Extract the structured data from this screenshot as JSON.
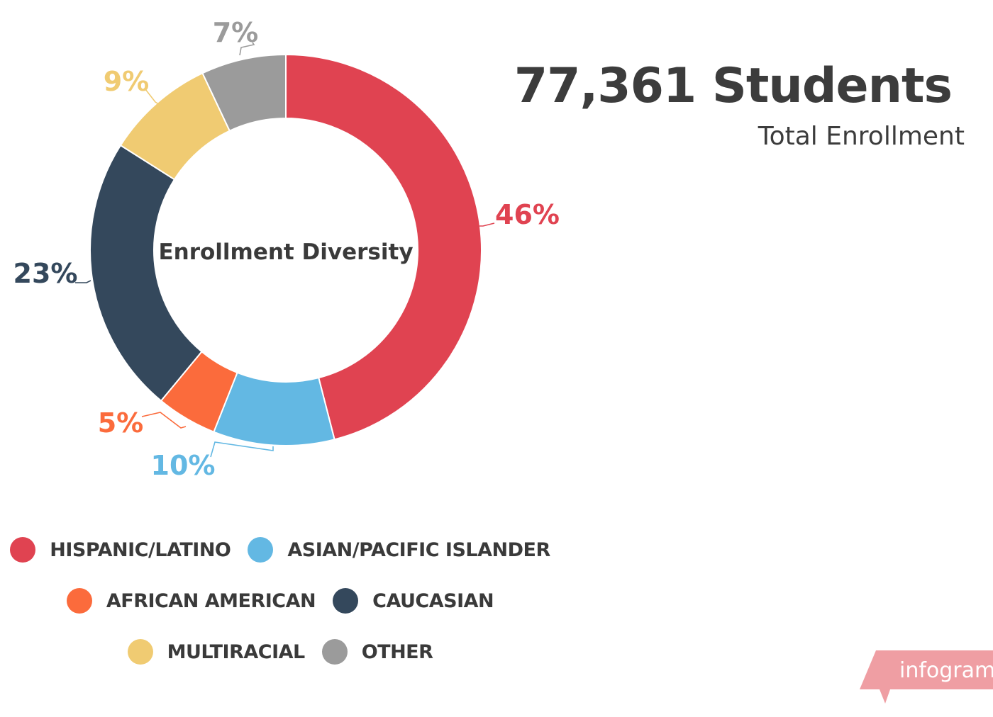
{
  "header": {
    "headline": "77,361 Students",
    "subhead": "Total Enrollment"
  },
  "chart_data": {
    "type": "pie",
    "donut": true,
    "center_text": "Enrollment Diversity",
    "series": [
      {
        "name": "HISPANIC/LATINO",
        "value": 46,
        "label": "46%",
        "color": "#e04351"
      },
      {
        "name": "ASIAN/PACIFIC ISLANDER",
        "value": 10,
        "label": "10%",
        "color": "#63b8e3"
      },
      {
        "name": "AFRICAN AMERICAN",
        "value": 5,
        "label": "5%",
        "color": "#fb6b3c"
      },
      {
        "name": "CAUCASIAN",
        "value": 23,
        "label": "23%",
        "color": "#34485c"
      },
      {
        "name": "MULTIRACIAL",
        "value": 9,
        "label": "9%",
        "color": "#f0cb72"
      },
      {
        "name": "OTHER",
        "value": 7,
        "label": "7%",
        "color": "#9b9b9b"
      }
    ],
    "legend_position": "bottom",
    "start_angle": "top",
    "direction": "clockwise"
  },
  "legend": {
    "rows": [
      [
        0,
        1
      ],
      [
        2,
        3
      ],
      [
        4,
        5
      ]
    ]
  },
  "watermark": {
    "text": "infogram",
    "color": "#ef9ea3"
  }
}
